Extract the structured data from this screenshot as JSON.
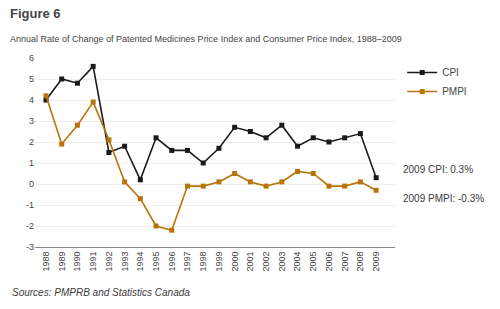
{
  "chart_data": {
    "type": "line",
    "title": "Figure 6",
    "subtitle": "Annual Rate of Change of Patented Medicines Price Index and Consumer Price Index, 1988–2009",
    "x": [
      1988,
      1989,
      1990,
      1991,
      1992,
      1993,
      1994,
      1995,
      1996,
      1997,
      1998,
      1999,
      2000,
      2001,
      2002,
      2003,
      2004,
      2005,
      2006,
      2007,
      2008,
      2009
    ],
    "series": [
      {
        "name": "CPI",
        "color": "#1a1a1a",
        "values": [
          4.0,
          5.0,
          4.8,
          5.6,
          1.5,
          1.8,
          0.2,
          2.2,
          1.6,
          1.6,
          1.0,
          1.7,
          2.7,
          2.5,
          2.2,
          2.8,
          1.8,
          2.2,
          2.0,
          2.2,
          2.4,
          0.3
        ]
      },
      {
        "name": "PMPI",
        "color": "#b8740a",
        "values": [
          4.2,
          1.9,
          2.8,
          3.9,
          2.1,
          0.1,
          -0.7,
          -2.0,
          -2.2,
          -0.1,
          -0.1,
          0.1,
          0.5,
          0.1,
          -0.1,
          0.1,
          0.6,
          0.5,
          -0.1,
          -0.1,
          0.1,
          -0.3
        ]
      }
    ],
    "xlim": [
      1987.3,
      2010.2
    ],
    "xticks": [
      1988,
      1989,
      1990,
      1991,
      1992,
      1993,
      1994,
      1995,
      1996,
      1997,
      1998,
      1999,
      2000,
      2001,
      2002,
      2003,
      2004,
      2005,
      2006,
      2007,
      2008,
      2009
    ],
    "ylim": [
      -3,
      6
    ],
    "yticks": [
      -3,
      -2,
      -1,
      0,
      1,
      2,
      3,
      4,
      5,
      6
    ],
    "grid": true,
    "legend": "right",
    "marker": "square",
    "annotations": [
      "2009 CPI: 0.3%",
      "2009 PMPI: -0.3%",
      "Sources: PMPRB and Statistics Canada"
    ]
  }
}
